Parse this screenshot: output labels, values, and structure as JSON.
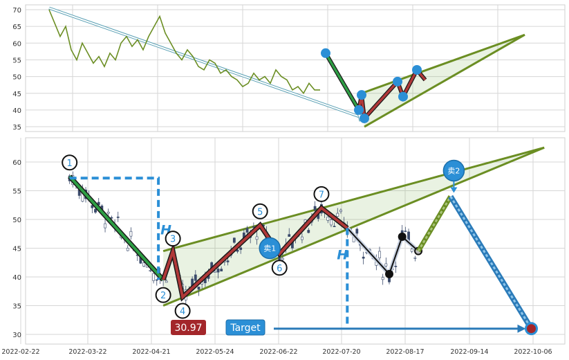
{
  "chart_data": [
    {
      "type": "line",
      "title": "",
      "ylim": [
        33,
        72
      ],
      "yticks": [
        35,
        40,
        45,
        50,
        55,
        60,
        65,
        70
      ],
      "grid": true,
      "colors": {
        "line": "#6b8e23",
        "marker": "#2b8fd6",
        "channel": "#6b8e23",
        "arrow": "#5aa0b4"
      },
      "series": [
        {
          "name": "",
          "points": [
            [
              0,
              70
            ],
            [
              2,
              66
            ],
            [
              4,
              62
            ],
            [
              6,
              65
            ],
            [
              8,
              58
            ],
            [
              10,
              55
            ],
            [
              12,
              60
            ],
            [
              14,
              57
            ],
            [
              16,
              54
            ],
            [
              18,
              56
            ],
            [
              20,
              53
            ],
            [
              22,
              57
            ],
            [
              24,
              55
            ],
            [
              26,
              60
            ],
            [
              28,
              62
            ],
            [
              30,
              59
            ],
            [
              32,
              61
            ],
            [
              34,
              58
            ],
            [
              36,
              62
            ],
            [
              38,
              65
            ],
            [
              40,
              68
            ],
            [
              42,
              63
            ],
            [
              44,
              60
            ],
            [
              46,
              57
            ],
            [
              48,
              55
            ],
            [
              50,
              58
            ],
            [
              52,
              56
            ],
            [
              54,
              53
            ],
            [
              56,
              52
            ],
            [
              58,
              55
            ],
            [
              60,
              54
            ],
            [
              62,
              51
            ],
            [
              64,
              52
            ],
            [
              66,
              50
            ],
            [
              68,
              49
            ],
            [
              70,
              47
            ],
            [
              72,
              48
            ],
            [
              74,
              51
            ],
            [
              76,
              49
            ],
            [
              78,
              50
            ],
            [
              80,
              48
            ],
            [
              82,
              52
            ],
            [
              84,
              50
            ],
            [
              86,
              49
            ],
            [
              88,
              46
            ],
            [
              90,
              47
            ],
            [
              92,
              45
            ],
            [
              94,
              48
            ],
            [
              96,
              46
            ],
            [
              98,
              46
            ]
          ]
        }
      ],
      "markers": [
        [
          100,
          57
        ],
        [
          112,
          40
        ],
        [
          113,
          44.5
        ],
        [
          114,
          37.5
        ],
        [
          126,
          48.5
        ],
        [
          128,
          44
        ],
        [
          133,
          52
        ]
      ],
      "zigzag": [
        [
          100,
          57
        ],
        [
          112,
          40
        ],
        [
          113,
          44.5
        ],
        [
          114,
          37.5
        ],
        [
          126,
          48.5
        ],
        [
          128,
          44
        ],
        [
          133,
          52
        ],
        [
          136,
          49
        ]
      ],
      "channel_upper": [
        [
          113,
          45
        ],
        [
          172,
          62.5
        ]
      ],
      "channel_lower": [
        [
          114,
          35
        ],
        [
          172,
          62.5
        ]
      ],
      "arrow": [
        [
          0,
          70.5
        ],
        [
          114,
          37.5
        ]
      ]
    },
    {
      "type": "candlestick",
      "title": "",
      "ylim": [
        29,
        64
      ],
      "yticks": [
        30,
        35,
        40,
        45,
        50,
        55,
        60
      ],
      "grid": true,
      "xticks": [
        "2022-02-22",
        "2022-03-22",
        "2022-04-21",
        "2022-05-24",
        "2022-06-22",
        "2022-07-20",
        "2022-08-17",
        "2022-09-14",
        "2022-10-06"
      ],
      "colors": {
        "up": "#ffffff",
        "down": "#3a4a6b",
        "channel": "#6b8e23",
        "zigzag": "#a83232",
        "target": "#2b7bb9",
        "circle": "#111111"
      },
      "points": [
        {
          "label": "1",
          "x": 4,
          "y": 57.5
        },
        {
          "label": "2",
          "x": 33,
          "y": 39.5
        },
        {
          "label": "3",
          "x": 36,
          "y": 44.5
        },
        {
          "label": "4",
          "x": 39,
          "y": 36.5
        },
        {
          "label": "5",
          "x": 63,
          "y": 49
        },
        {
          "label": "6",
          "x": 69,
          "y": 44
        },
        {
          "label": "7",
          "x": 82,
          "y": 52
        }
      ],
      "zigzag": [
        [
          4,
          57.5
        ],
        [
          33,
          39.5
        ],
        [
          36,
          44.5
        ],
        [
          39,
          36.5
        ],
        [
          63,
          49
        ],
        [
          69,
          44
        ],
        [
          82,
          52
        ],
        [
          90,
          48.5
        ]
      ],
      "black_path": [
        [
          90,
          48.5
        ],
        [
          103,
          40.5
        ],
        [
          107,
          47
        ],
        [
          112,
          44.5
        ]
      ],
      "black_dots": [
        [
          103,
          40.5
        ],
        [
          107,
          47
        ]
      ],
      "channel_upper": [
        [
          33,
          44.5
        ],
        [
          151,
          62.5
        ]
      ],
      "channel_lower": [
        [
          33,
          35
        ],
        [
          151,
          62.5
        ]
      ],
      "pattern_height": {
        "label": "H",
        "x": 31.5,
        "from": 57.2,
        "to": 39.5
      },
      "breakout_height": {
        "label": "H",
        "x": 90,
        "from": 48.5,
        "to": 31
      },
      "sells": [
        {
          "label": "卖1",
          "x": 66,
          "y": 45
        },
        {
          "label": "卖2",
          "x": 123,
          "y": 58.5
        }
      ],
      "projection": [
        [
          112,
          44.5
        ],
        [
          122,
          54
        ],
        [
          147,
          31
        ]
      ],
      "target_point": {
        "x": 147,
        "y": 31
      },
      "stop_label": "30.97",
      "target_label": "Target"
    }
  ]
}
